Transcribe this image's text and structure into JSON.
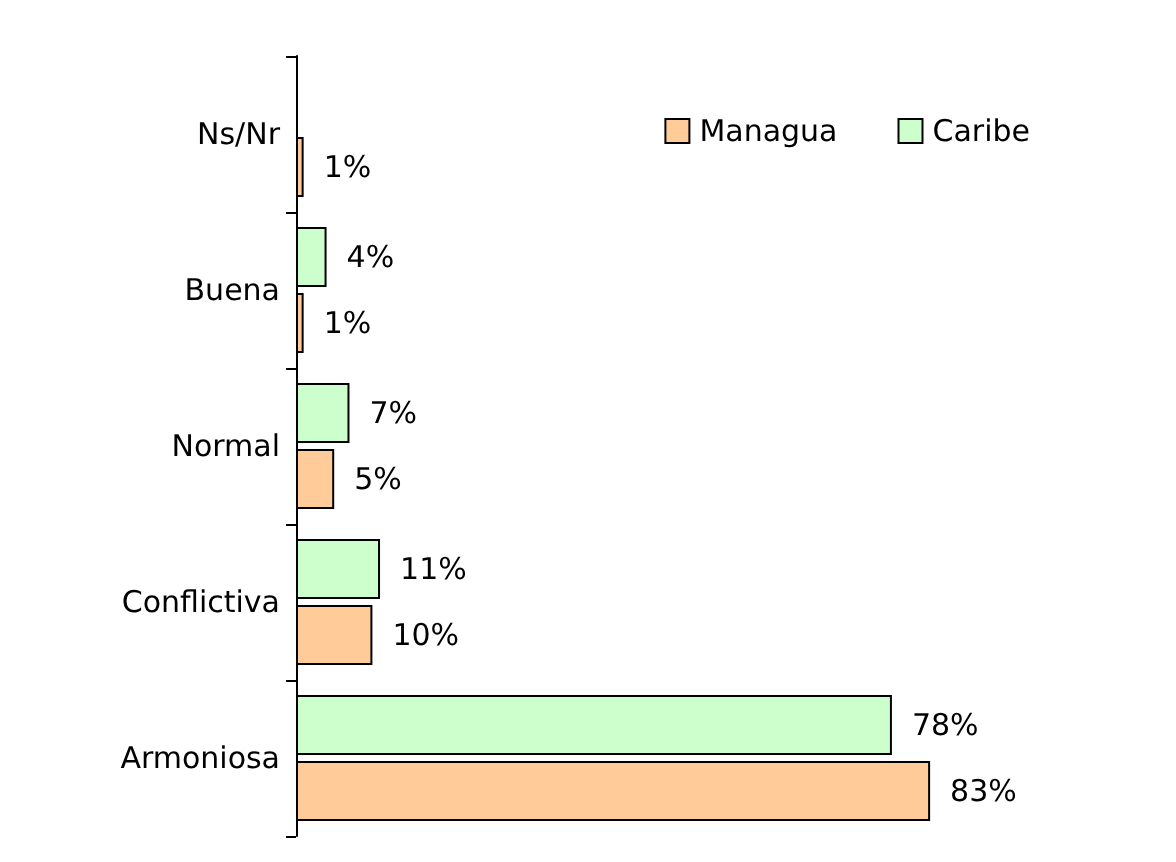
{
  "chart_data": {
    "type": "bar",
    "orientation": "horizontal",
    "categories": [
      "Ns/Nr",
      "Buena",
      "Normal",
      "Conflictiva",
      "Armoniosa"
    ],
    "series": [
      {
        "name": "Managua",
        "color": "#ffcc99",
        "values": [
          1,
          1,
          5,
          10,
          83
        ],
        "value_labels": [
          "1%",
          "1%",
          "5%",
          "10%",
          "83%"
        ]
      },
      {
        "name": "Caribe",
        "color": "#ccffcc",
        "values": [
          null,
          4,
          7,
          11,
          78
        ],
        "value_labels": [
          null,
          "4%",
          "7%",
          "11%",
          "78%"
        ]
      }
    ],
    "legend": "top right"
  }
}
